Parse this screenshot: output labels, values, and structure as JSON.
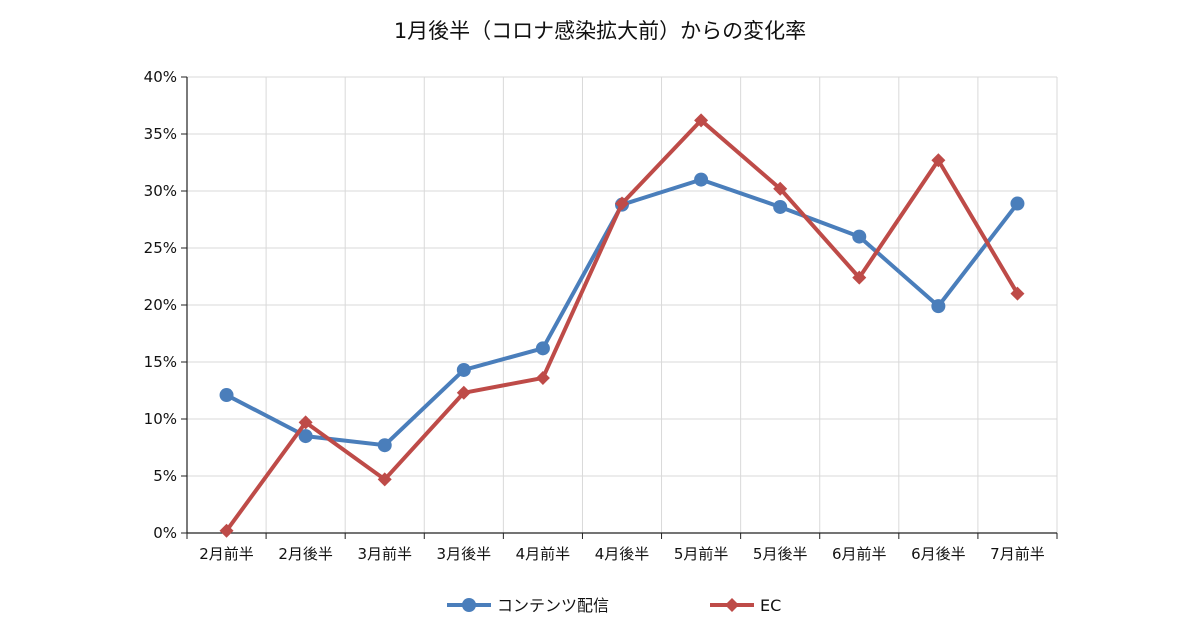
{
  "chart_data": {
    "type": "line",
    "title": "1月後半（コロナ感染拡大前）からの変化率",
    "xlabel": "",
    "ylabel": "",
    "categories": [
      "2月前半",
      "2月後半",
      "3月前半",
      "3月後半",
      "4月前半",
      "4月後半",
      "5月前半",
      "5月後半",
      "6月前半",
      "6月後半",
      "7月前半"
    ],
    "ylim": [
      0,
      40
    ],
    "yticks": [
      "0%",
      "5%",
      "10%",
      "15%",
      "20%",
      "25%",
      "30%",
      "35%",
      "40%"
    ],
    "ytick_values": [
      0,
      5,
      10,
      15,
      20,
      25,
      30,
      35,
      40
    ],
    "grid": true,
    "legend_position": "bottom",
    "series": [
      {
        "name": "コンテンツ配信",
        "color": "#4a7ebb",
        "marker": "circle",
        "values": [
          12.1,
          8.5,
          7.7,
          14.3,
          16.2,
          28.8,
          31.0,
          28.6,
          26.0,
          19.9,
          28.9
        ]
      },
      {
        "name": "EC",
        "color": "#be4b48",
        "marker": "diamond",
        "values": [
          0.2,
          9.7,
          4.7,
          12.3,
          13.6,
          28.9,
          36.2,
          30.2,
          22.4,
          32.7,
          21.0
        ]
      }
    ]
  }
}
